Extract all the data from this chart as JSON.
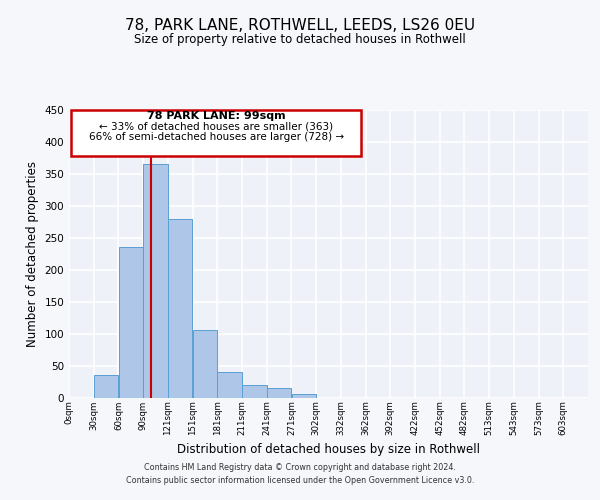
{
  "title": "78, PARK LANE, ROTHWELL, LEEDS, LS26 0EU",
  "subtitle": "Size of property relative to detached houses in Rothwell",
  "xlabel": "Distribution of detached houses by size in Rothwell",
  "ylabel": "Number of detached properties",
  "bar_edges": [
    0,
    30,
    60,
    90,
    120,
    150,
    180,
    210,
    240,
    270,
    300,
    330,
    360,
    390,
    420,
    450,
    480,
    510,
    540,
    570,
    600,
    630
  ],
  "bar_heights": [
    0,
    35,
    235,
    365,
    280,
    105,
    40,
    20,
    15,
    5,
    0,
    0,
    0,
    0,
    0,
    0,
    0,
    0,
    0,
    0,
    0
  ],
  "bar_color": "#aec6e8",
  "bar_edge_color": "#5a9fd4",
  "ylim": [
    0,
    450
  ],
  "yticks": [
    0,
    50,
    100,
    150,
    200,
    250,
    300,
    350,
    400,
    450
  ],
  "red_line_x": 99,
  "annotation_title": "78 PARK LANE: 99sqm",
  "annotation_line1": "← 33% of detached houses are smaller (363)",
  "annotation_line2": "66% of semi-detached houses are larger (728) →",
  "annotation_border_color": "#cc0000",
  "footer_line1": "Contains HM Land Registry data © Crown copyright and database right 2024.",
  "footer_line2": "Contains public sector information licensed under the Open Government Licence v3.0.",
  "background_color": "#eef2f8",
  "grid_color": "#ffffff",
  "tick_labels": [
    "0sqm",
    "30sqm",
    "60sqm",
    "90sqm",
    "121sqm",
    "151sqm",
    "181sqm",
    "211sqm",
    "241sqm",
    "271sqm",
    "302sqm",
    "332sqm",
    "362sqm",
    "392sqm",
    "422sqm",
    "452sqm",
    "482sqm",
    "513sqm",
    "543sqm",
    "573sqm",
    "603sqm"
  ]
}
